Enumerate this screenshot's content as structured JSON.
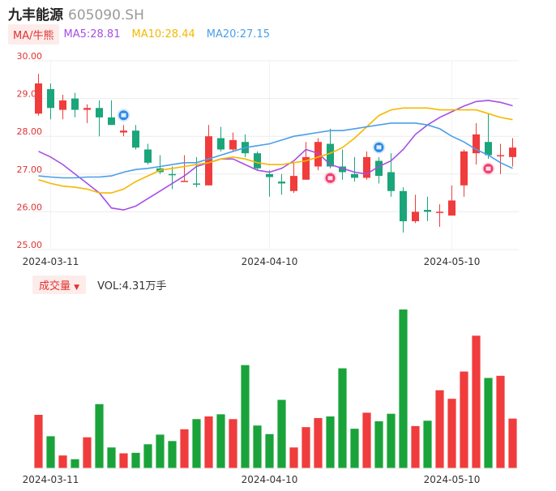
{
  "header": {
    "stock_name": "九丰能源",
    "stock_code": "605090.SH"
  },
  "ma_bar": {
    "toggle_label": "MA/牛熊",
    "ma5": "MA5:28.81",
    "ma10": "MA10:28.44",
    "ma20": "MA20:27.15"
  },
  "volume_bar": {
    "toggle_label": "成交量",
    "vol_text": "VOL:4.31万手"
  },
  "colors": {
    "up": "#f03c3c",
    "down": "#1aa57a",
    "vol_down": "#1aa33a",
    "ma5": "#a64ee6",
    "ma10": "#f5b800",
    "ma20": "#4a9fe8",
    "marker_sell": "#2e8ae6",
    "marker_buy": "#f03c6e"
  },
  "chart_data": {
    "type": "candlestick",
    "y_ticks": [
      "30.00",
      "29.00",
      "28.00",
      "27.00",
      "26.00",
      "25.00"
    ],
    "ylim": [
      25.0,
      30.0
    ],
    "x_ticks": [
      {
        "label": "2024-03-11",
        "index": 1
      },
      {
        "label": "2024-04-10",
        "index": 19
      },
      {
        "label": "2024-05-10",
        "index": 34
      }
    ],
    "candles": [
      {
        "o": 28.6,
        "c": 29.4,
        "h": 29.65,
        "l": 28.55,
        "v": 5.0
      },
      {
        "o": 29.25,
        "c": 28.75,
        "h": 29.4,
        "l": 28.45,
        "v": 3.0
      },
      {
        "o": 28.7,
        "c": 28.95,
        "h": 29.1,
        "l": 28.45,
        "v": 1.2
      },
      {
        "o": 29.0,
        "c": 28.7,
        "h": 29.15,
        "l": 28.5,
        "v": 0.85
      },
      {
        "o": 28.7,
        "c": 28.75,
        "h": 28.85,
        "l": 28.35,
        "v": 2.9
      },
      {
        "o": 28.75,
        "c": 28.5,
        "h": 28.95,
        "l": 28.0,
        "v": 6.0
      },
      {
        "o": 28.5,
        "c": 28.3,
        "h": 28.95,
        "l": 28.3,
        "v": 1.95
      },
      {
        "o": 28.1,
        "c": 28.15,
        "h": 28.3,
        "l": 28.0,
        "v": 1.4
      },
      {
        "o": 28.15,
        "c": 27.7,
        "h": 28.3,
        "l": 27.65,
        "v": 1.45
      },
      {
        "o": 27.65,
        "c": 27.3,
        "h": 27.8,
        "l": 27.25,
        "v": 2.25
      },
      {
        "o": 27.15,
        "c": 27.05,
        "h": 27.5,
        "l": 27.0,
        "v": 3.15
      },
      {
        "o": 27.0,
        "c": 26.97,
        "h": 27.2,
        "l": 26.6,
        "v": 2.55
      },
      {
        "o": 26.8,
        "c": 26.82,
        "h": 27.5,
        "l": 26.8,
        "v": 3.65
      },
      {
        "o": 26.75,
        "c": 26.72,
        "h": 27.45,
        "l": 26.65,
        "v": 4.6
      },
      {
        "o": 26.7,
        "c": 28.0,
        "h": 28.3,
        "l": 26.7,
        "v": 4.85
      },
      {
        "o": 27.95,
        "c": 27.65,
        "h": 28.25,
        "l": 27.6,
        "v": 5.05
      },
      {
        "o": 27.65,
        "c": 27.9,
        "h": 28.1,
        "l": 27.6,
        "v": 4.6
      },
      {
        "o": 27.85,
        "c": 27.55,
        "h": 28.05,
        "l": 27.45,
        "v": 9.65
      },
      {
        "o": 27.55,
        "c": 27.15,
        "h": 27.6,
        "l": 27.1,
        "v": 4.0
      },
      {
        "o": 27.0,
        "c": 26.92,
        "h": 27.1,
        "l": 26.4,
        "v": 3.2
      },
      {
        "o": 26.8,
        "c": 26.75,
        "h": 27.0,
        "l": 26.45,
        "v": 6.4
      },
      {
        "o": 26.55,
        "c": 26.95,
        "h": 27.3,
        "l": 26.5,
        "v": 1.95
      },
      {
        "o": 26.85,
        "c": 27.45,
        "h": 27.85,
        "l": 26.85,
        "v": 3.85
      },
      {
        "o": 27.2,
        "c": 27.85,
        "h": 27.95,
        "l": 27.1,
        "v": 4.7
      },
      {
        "o": 27.8,
        "c": 27.2,
        "h": 28.2,
        "l": 27.15,
        "v": 4.85
      },
      {
        "o": 27.2,
        "c": 27.05,
        "h": 27.65,
        "l": 26.85,
        "v": 9.35
      },
      {
        "o": 27.0,
        "c": 26.9,
        "h": 27.45,
        "l": 26.8,
        "v": 3.7
      },
      {
        "o": 26.9,
        "c": 27.45,
        "h": 27.6,
        "l": 26.85,
        "v": 5.2
      },
      {
        "o": 27.35,
        "c": 26.95,
        "h": 27.45,
        "l": 26.75,
        "v": 4.4
      },
      {
        "o": 27.05,
        "c": 26.55,
        "h": 27.55,
        "l": 26.4,
        "v": 5.1
      },
      {
        "o": 26.55,
        "c": 25.75,
        "h": 26.65,
        "l": 25.45,
        "v": 14.85
      },
      {
        "o": 25.75,
        "c": 26.0,
        "h": 26.45,
        "l": 25.7,
        "v": 3.95
      },
      {
        "o": 26.05,
        "c": 26.0,
        "h": 26.4,
        "l": 25.75,
        "v": 4.45
      },
      {
        "o": 26.0,
        "c": 26.0,
        "h": 26.2,
        "l": 25.6,
        "v": 7.3
      },
      {
        "o": 25.9,
        "c": 26.3,
        "h": 26.7,
        "l": 25.9,
        "v": 6.5
      },
      {
        "o": 26.7,
        "c": 27.6,
        "h": 27.65,
        "l": 26.4,
        "v": 9.05
      },
      {
        "o": 27.55,
        "c": 28.05,
        "h": 28.35,
        "l": 27.25,
        "v": 12.4
      },
      {
        "o": 27.85,
        "c": 27.5,
        "h": 28.6,
        "l": 27.4,
        "v": 8.45
      },
      {
        "o": 27.5,
        "c": 27.5,
        "h": 27.8,
        "l": 27.0,
        "v": 8.65
      },
      {
        "o": 27.45,
        "c": 27.7,
        "h": 27.95,
        "l": 27.2,
        "v": 4.65
      }
    ],
    "series": [
      {
        "name": "MA5",
        "values": [
          27.6,
          27.45,
          27.25,
          27.0,
          26.75,
          26.5,
          26.1,
          26.05,
          26.15,
          26.35,
          26.55,
          26.75,
          26.95,
          27.2,
          27.3,
          27.4,
          27.4,
          27.25,
          27.1,
          27.05,
          27.15,
          27.35,
          27.65,
          27.55,
          27.25,
          27.15,
          27.05,
          27.0,
          27.2,
          27.35,
          27.65,
          28.05,
          28.3,
          28.5,
          28.65,
          28.8,
          28.92,
          28.95,
          28.9,
          28.81
        ]
      },
      {
        "name": "MA10",
        "values": [
          26.85,
          26.75,
          26.68,
          26.65,
          26.6,
          26.5,
          26.5,
          26.6,
          26.8,
          26.95,
          27.1,
          27.15,
          27.2,
          27.25,
          27.3,
          27.4,
          27.45,
          27.4,
          27.3,
          27.25,
          27.25,
          27.3,
          27.35,
          27.45,
          27.55,
          27.7,
          27.95,
          28.25,
          28.55,
          28.7,
          28.75,
          28.75,
          28.75,
          28.7,
          28.7,
          28.7,
          28.7,
          28.6,
          28.5,
          28.44
        ]
      },
      {
        "name": "MA20",
        "values": [
          26.95,
          26.92,
          26.9,
          26.9,
          26.92,
          26.92,
          26.95,
          27.05,
          27.12,
          27.15,
          27.2,
          27.25,
          27.3,
          27.3,
          27.4,
          27.5,
          27.6,
          27.7,
          27.75,
          27.8,
          27.9,
          28.0,
          28.05,
          28.1,
          28.15,
          28.15,
          28.2,
          28.25,
          28.3,
          28.35,
          28.35,
          28.35,
          28.3,
          28.2,
          28.0,
          27.85,
          27.65,
          27.5,
          27.3,
          27.15
        ]
      }
    ],
    "signals": [
      {
        "index": 7,
        "type": "sell"
      },
      {
        "index": 24,
        "type": "buy"
      },
      {
        "index": 28,
        "type": "sell"
      },
      {
        "index": 37,
        "type": "buy"
      }
    ],
    "volume_max": 15.0,
    "grid": true
  }
}
